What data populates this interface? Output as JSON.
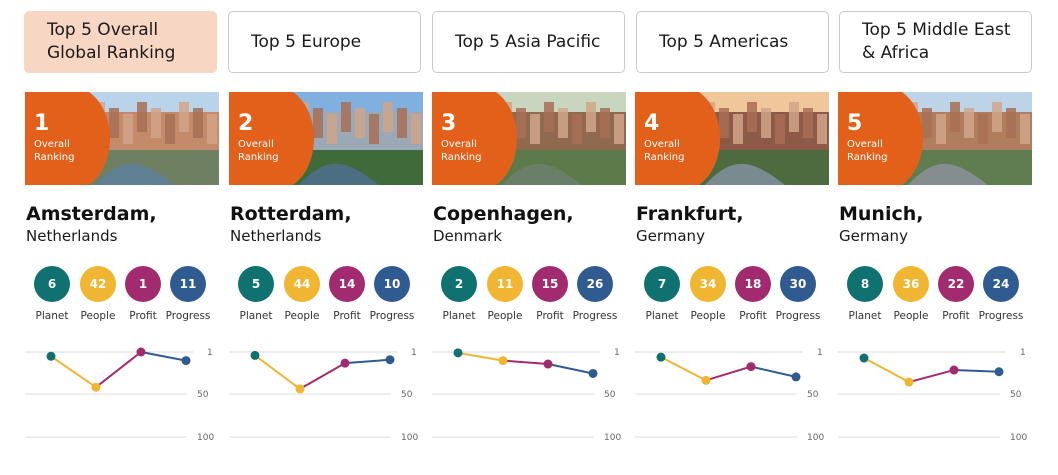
{
  "tabs": [
    {
      "label": "Top 5 Overall Global Ranking",
      "line1": "Top 5 Overall",
      "line2": "Global Ranking",
      "active": true
    },
    {
      "label": "Top 5 Europe",
      "line1": "Top 5 Europe",
      "line2": "",
      "active": false
    },
    {
      "label": "Top 5 Asia Pacific",
      "line1": "Top 5 Asia Pacific",
      "line2": "",
      "active": false
    },
    {
      "label": "Top 5 Americas",
      "line1": "Top 5 Americas",
      "line2": "",
      "active": false
    },
    {
      "label": "Top 5 Middle East & Africa",
      "line1": "Top 5 Middle East",
      "line2": "& Africa",
      "active": false
    }
  ],
  "rank_caption_line1": "Overall",
  "rank_caption_line2": "Ranking",
  "pillar_labels": [
    "Planet",
    "People",
    "Profit",
    "Progress"
  ],
  "pillar_colors": [
    "#0f7170",
    "#f0b531",
    "#a22a6f",
    "#2f5b91"
  ],
  "accent_color": "#e2601a",
  "axis_ticks": [
    "1",
    "50",
    "100"
  ],
  "cities": [
    {
      "rank": "1",
      "city": "Amsterdam,",
      "country": "Netherlands",
      "scores": [
        6,
        42,
        1,
        11
      ]
    },
    {
      "rank": "2",
      "city": "Rotterdam,",
      "country": "Netherlands",
      "scores": [
        5,
        44,
        14,
        10
      ]
    },
    {
      "rank": "3",
      "city": "Copenhagen,",
      "country": "Denmark",
      "scores": [
        2,
        11,
        15,
        26
      ]
    },
    {
      "rank": "4",
      "city": "Frankfurt,",
      "country": "Germany",
      "scores": [
        7,
        34,
        18,
        30
      ]
    },
    {
      "rank": "5",
      "city": "Munich,",
      "country": "Germany",
      "scores": [
        8,
        36,
        22,
        24
      ]
    }
  ]
}
